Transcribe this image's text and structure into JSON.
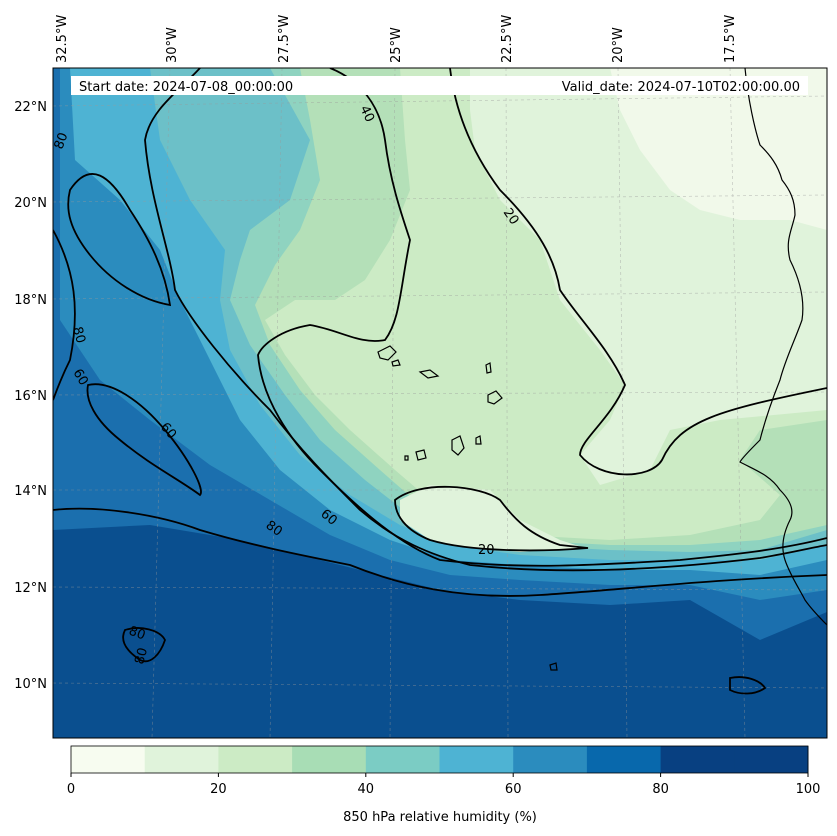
{
  "map": {
    "start_date": "Start date: 2024-07-08_00:00:00",
    "valid_date": "Valid_date: 2024-07-10T02:00:00.00",
    "lon_labels": [
      "32.5°W",
      "30°W",
      "27.5°W",
      "25°W",
      "22.5°W",
      "20°W",
      "17.5°W"
    ],
    "lat_labels": [
      "22°N",
      "20°N",
      "18°N",
      "16°N",
      "14°N",
      "12°N",
      "10°N"
    ],
    "contour_labels": [
      "80",
      "80",
      "60",
      "60",
      "40",
      "20",
      "20",
      "80",
      "60",
      "80",
      "80"
    ],
    "field_colors": [
      "#f7fcf0",
      "#e0f3db",
      "#ccebc5",
      "#a8ddb5",
      "#7bccc4",
      "#4eb3d3",
      "#2b8cbe",
      "#0868ac",
      "#084081"
    ]
  },
  "colorbar": {
    "label": "850 hPa relative humidity (%)",
    "ticks": [
      "0",
      "20",
      "40",
      "60",
      "80",
      "100"
    ],
    "range": [
      0,
      100
    ],
    "colors": [
      "#f7fcf0",
      "#e0f3db",
      "#ccebc5",
      "#a8ddb5",
      "#7bccc4",
      "#4eb3d3",
      "#2b8cbe",
      "#0868ac",
      "#084081",
      "#084081"
    ]
  }
}
